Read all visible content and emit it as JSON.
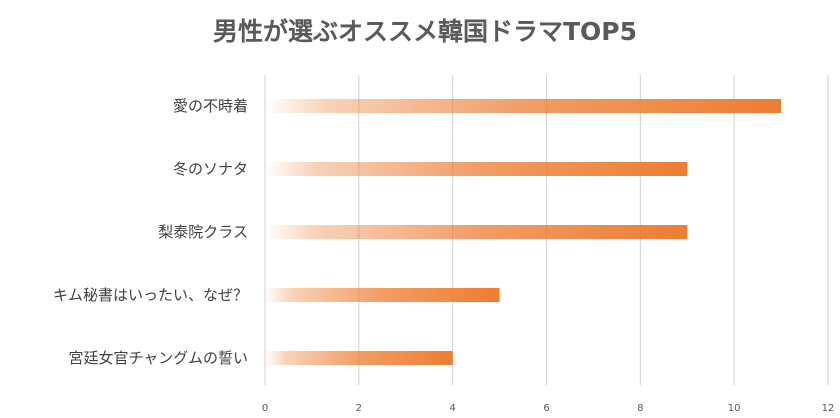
{
  "chart_data": {
    "type": "bar",
    "orientation": "horizontal",
    "title": "男性が選ぶオススメ韓国ドラマTOP5",
    "xlabel": "",
    "ylabel": "",
    "categories": [
      "愛の不時着",
      "冬のソナタ",
      "梨泰院クラス",
      "キム秘書はいったい、なぜ？",
      "宮廷女官チャングムの誓い"
    ],
    "values": [
      11,
      9,
      9,
      5,
      4
    ],
    "xlim": [
      0,
      12
    ],
    "ticks": [
      "0",
      "2",
      "4",
      "6",
      "8",
      "10",
      "12"
    ],
    "grid": true,
    "legend": "none",
    "bar_color": "#ED7D31",
    "bar_fill": "gradient fading to white at left"
  }
}
